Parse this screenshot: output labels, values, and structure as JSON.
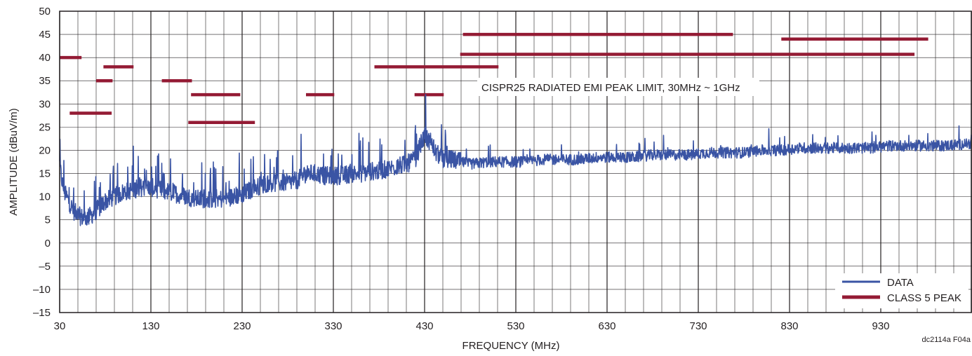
{
  "chart_data": {
    "type": "line",
    "title": "",
    "xlabel": "FREQUENCY (MHz)",
    "ylabel": "AMPLITUDE (dBuV/m)",
    "xlim": [
      30,
      1030
    ],
    "ylim": [
      -15,
      50
    ],
    "x_ticks": [
      30,
      130,
      230,
      330,
      430,
      530,
      630,
      730,
      830,
      930
    ],
    "x_tick_labels": [
      "30",
      "130",
      "230",
      "330",
      "430",
      "530",
      "630",
      "730",
      "830",
      "930"
    ],
    "y_ticks": [
      -15,
      -10,
      -5,
      0,
      5,
      10,
      15,
      20,
      25,
      30,
      35,
      40,
      45,
      50
    ],
    "y_tick_labels": [
      "–15",
      "–10",
      "–5",
      "0",
      "5",
      "10",
      "15",
      "20",
      "25",
      "30",
      "35",
      "40",
      "45",
      "50"
    ],
    "grid": true,
    "legend_position": "bottom-right",
    "annotation": "CISPR25 RADIATED EMI PEAK LIMIT, 30MHz ~ 1GHz",
    "figure_code": "dc2114a F04a",
    "series": [
      {
        "name": "DATA",
        "color": "#3a54a4",
        "x": [
          30,
          32,
          35,
          40,
          45,
          50,
          55,
          60,
          65,
          70,
          75,
          80,
          90,
          100,
          110,
          120,
          130,
          140,
          150,
          160,
          170,
          180,
          190,
          200,
          210,
          220,
          230,
          240,
          250,
          260,
          270,
          280,
          290,
          300,
          310,
          320,
          330,
          340,
          350,
          360,
          370,
          380,
          390,
          400,
          410,
          420,
          425,
          430,
          435,
          440,
          450,
          460,
          470,
          480,
          500,
          520,
          540,
          560,
          580,
          600,
          620,
          640,
          660,
          680,
          700,
          720,
          740,
          760,
          780,
          800,
          820,
          840,
          860,
          880,
          900,
          920,
          940,
          960,
          980,
          1000,
          1030
        ],
        "y": [
          17,
          14,
          11,
          9,
          7,
          6,
          5.5,
          5.5,
          6,
          7,
          8,
          9,
          10,
          11,
          11.5,
          12,
          12,
          11.5,
          11,
          10.5,
          10,
          9.5,
          9.5,
          9.5,
          9.5,
          10,
          10.5,
          11.5,
          12.5,
          13,
          13,
          13,
          13.5,
          15,
          15,
          14.5,
          14.5,
          14.5,
          15,
          15,
          15.5,
          15.5,
          16,
          16.5,
          17,
          18,
          21,
          23,
          22,
          20,
          18,
          18,
          17.5,
          17,
          17.5,
          17.5,
          17.5,
          18,
          18,
          18,
          18.5,
          18.5,
          18.5,
          19,
          19,
          19,
          19.5,
          19.5,
          19.5,
          20,
          20,
          20.5,
          20.5,
          20.5,
          20.5,
          20.5,
          21,
          21,
          21,
          21,
          21.5
        ]
      },
      {
        "name": "CLASS 5 PEAK",
        "color": "#941b34",
        "segments": [
          {
            "x": [
              30,
              54
            ],
            "y": 40
          },
          {
            "x": [
              41,
              87
            ],
            "y": 28
          },
          {
            "x": [
              70,
              88
            ],
            "y": 35
          },
          {
            "x": [
              78,
              111
            ],
            "y": 38
          },
          {
            "x": [
              142,
              175
            ],
            "y": 35
          },
          {
            "x": [
              171,
              244
            ],
            "y": 26
          },
          {
            "x": [
              174,
              228
            ],
            "y": 32
          },
          {
            "x": [
              300,
              331
            ],
            "y": 32
          },
          {
            "x": [
              375,
              511
            ],
            "y": 38
          },
          {
            "x": [
              419,
              451
            ],
            "y": 32
          },
          {
            "x": [
              469,
              967
            ],
            "y": 40.7
          },
          {
            "x": [
              472,
              768
            ],
            "y": 45
          },
          {
            "x": [
              821,
              982
            ],
            "y": 44
          }
        ]
      }
    ]
  }
}
